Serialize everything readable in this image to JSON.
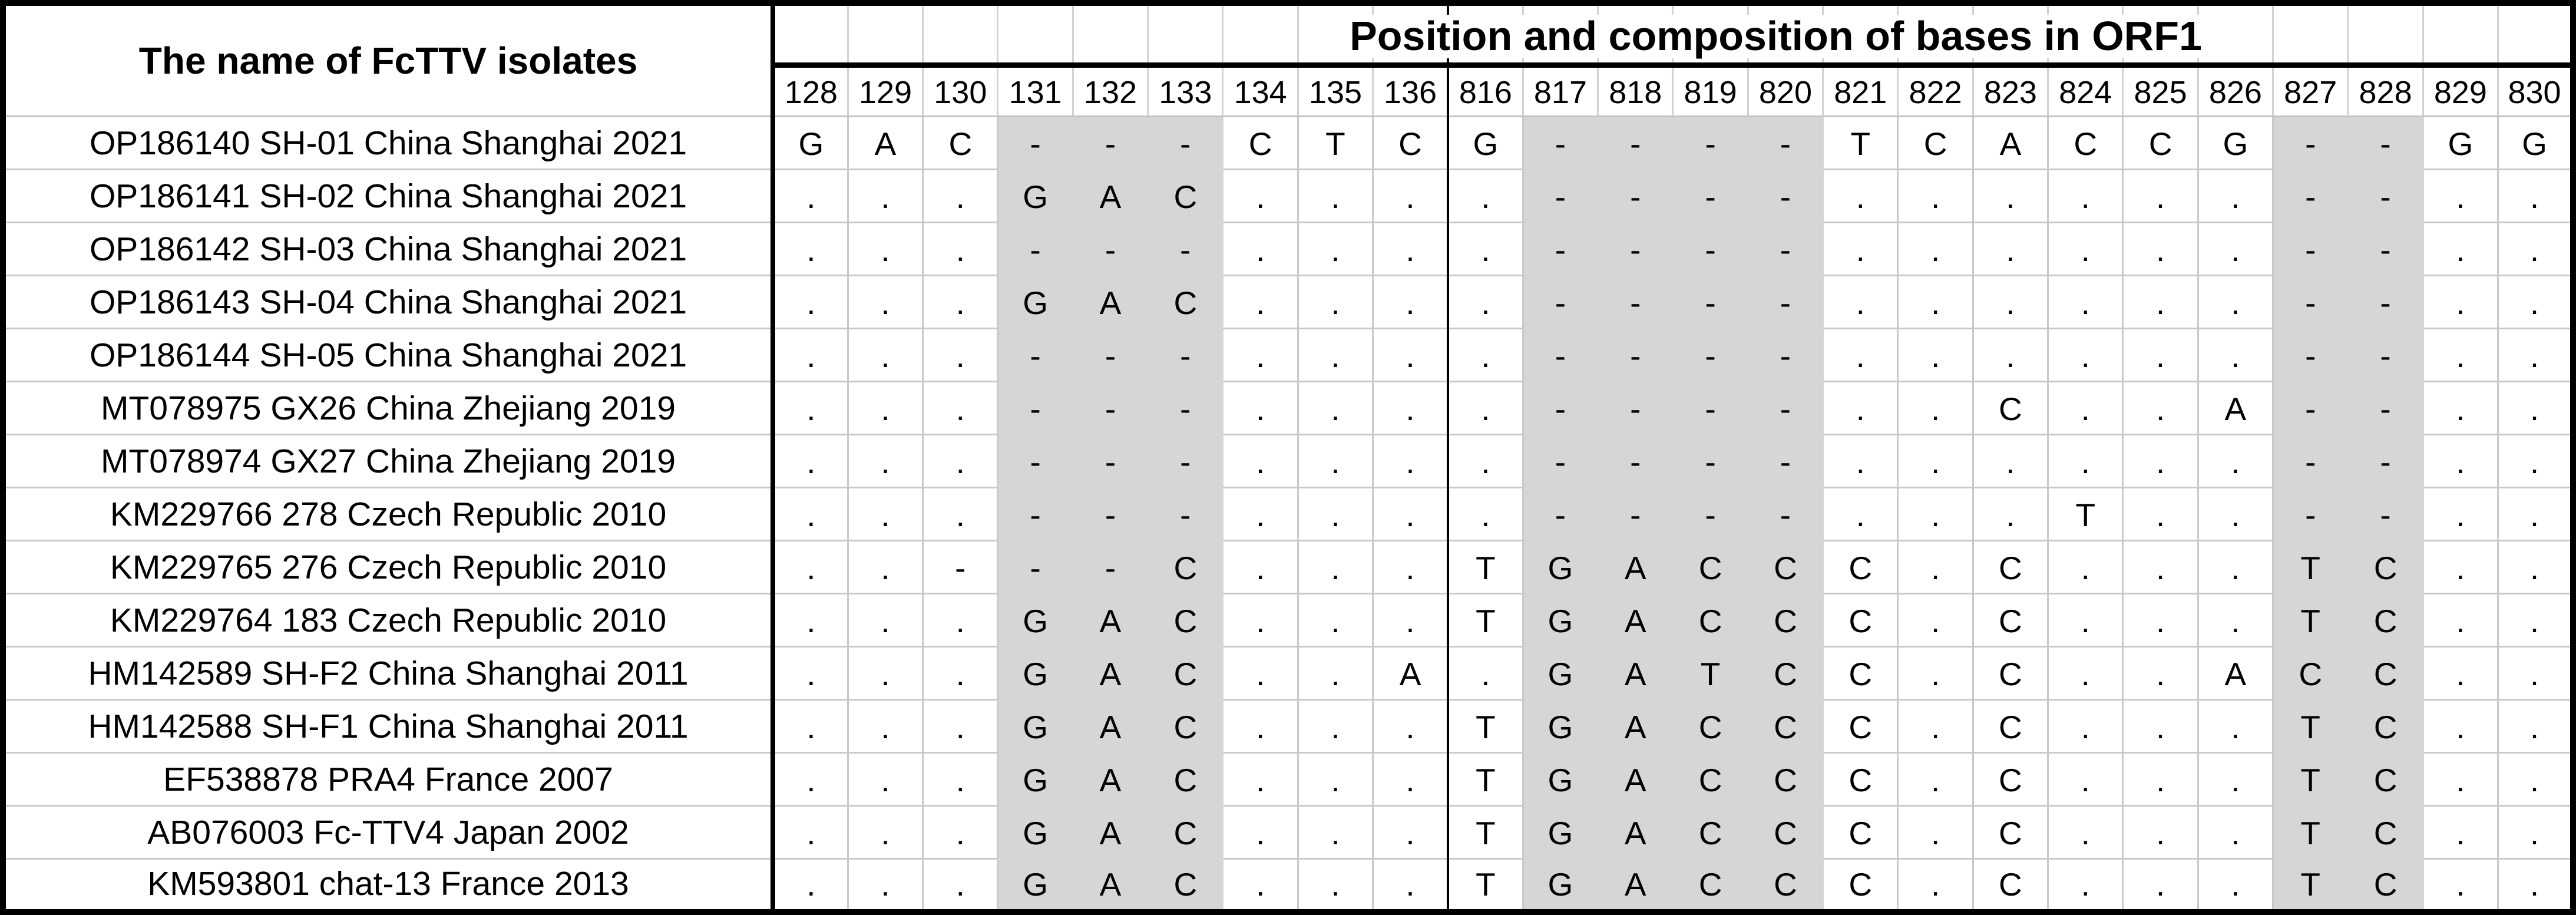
{
  "table": {
    "name_header": "The name of FcTTV isolates",
    "title": "Position and composition of bases in ORF1",
    "positions": [
      "128",
      "129",
      "130",
      "131",
      "132",
      "133",
      "134",
      "135",
      "136",
      "816",
      "817",
      "818",
      "819",
      "820",
      "821",
      "822",
      "823",
      "824",
      "825",
      "826",
      "827",
      "828",
      "829",
      "830"
    ],
    "shaded_positions": [
      "131",
      "132",
      "133",
      "817",
      "818",
      "819",
      "820",
      "827",
      "828"
    ],
    "rows": [
      {
        "name": "OP186140 SH-01 China Shanghai 2021",
        "bases": [
          "G",
          "A",
          "C",
          "-",
          "-",
          "-",
          "C",
          "T",
          "C",
          "G",
          "-",
          "-",
          "-",
          "-",
          "T",
          "C",
          "A",
          "C",
          "C",
          "G",
          "-",
          "-",
          "G",
          "G"
        ]
      },
      {
        "name": "OP186141 SH-02 China Shanghai 2021",
        "bases": [
          ".",
          ".",
          ".",
          "G",
          "A",
          "C",
          ".",
          ".",
          ".",
          ".",
          "-",
          "-",
          "-",
          "-",
          ".",
          ".",
          ".",
          ".",
          ".",
          ".",
          "-",
          "-",
          ".",
          "."
        ]
      },
      {
        "name": "OP186142 SH-03 China Shanghai 2021",
        "bases": [
          ".",
          ".",
          ".",
          "-",
          "-",
          "-",
          ".",
          ".",
          ".",
          ".",
          "-",
          "-",
          "-",
          "-",
          ".",
          ".",
          ".",
          ".",
          ".",
          ".",
          "-",
          "-",
          ".",
          "."
        ]
      },
      {
        "name": "OP186143 SH-04 China Shanghai 2021",
        "bases": [
          ".",
          ".",
          ".",
          "G",
          "A",
          "C",
          ".",
          ".",
          ".",
          ".",
          "-",
          "-",
          "-",
          "-",
          ".",
          ".",
          ".",
          ".",
          ".",
          ".",
          "-",
          "-",
          ".",
          "."
        ]
      },
      {
        "name": "OP186144 SH-05 China Shanghai 2021",
        "bases": [
          ".",
          ".",
          ".",
          "-",
          "-",
          "-",
          ".",
          ".",
          ".",
          ".",
          "-",
          "-",
          "-",
          "-",
          ".",
          ".",
          ".",
          ".",
          ".",
          ".",
          "-",
          "-",
          ".",
          "."
        ]
      },
      {
        "name": "MT078975 GX26 China Zhejiang 2019",
        "bases": [
          ".",
          ".",
          ".",
          "-",
          "-",
          "-",
          ".",
          ".",
          ".",
          ".",
          "-",
          "-",
          "-",
          "-",
          ".",
          ".",
          "C",
          ".",
          ".",
          "A",
          "-",
          "-",
          ".",
          "."
        ]
      },
      {
        "name": "MT078974 GX27 China Zhejiang 2019",
        "bases": [
          ".",
          ".",
          ".",
          "-",
          "-",
          "-",
          ".",
          ".",
          ".",
          ".",
          "-",
          "-",
          "-",
          "-",
          ".",
          ".",
          ".",
          ".",
          ".",
          ".",
          "-",
          "-",
          ".",
          "."
        ]
      },
      {
        "name": "KM229766 278 Czech Republic 2010",
        "bases": [
          ".",
          ".",
          ".",
          "-",
          "-",
          "-",
          ".",
          ".",
          ".",
          ".",
          "-",
          "-",
          "-",
          "-",
          ".",
          ".",
          ".",
          "T",
          ".",
          ".",
          "-",
          "-",
          ".",
          "."
        ]
      },
      {
        "name": "KM229765 276 Czech Republic 2010",
        "bases": [
          ".",
          ".",
          "-",
          "-",
          "-",
          "C",
          ".",
          ".",
          ".",
          "T",
          "G",
          "A",
          "C",
          "C",
          "C",
          ".",
          "C",
          ".",
          ".",
          ".",
          "T",
          "C",
          ".",
          "."
        ]
      },
      {
        "name": "KM229764 183 Czech Republic 2010",
        "bases": [
          ".",
          ".",
          ".",
          "G",
          "A",
          "C",
          ".",
          ".",
          ".",
          "T",
          "G",
          "A",
          "C",
          "C",
          "C",
          ".",
          "C",
          ".",
          ".",
          ".",
          "T",
          "C",
          ".",
          "."
        ]
      },
      {
        "name": "HM142589 SH-F2 China Shanghai 2011",
        "bases": [
          ".",
          ".",
          ".",
          "G",
          "A",
          "C",
          ".",
          ".",
          "A",
          ".",
          "G",
          "A",
          "T",
          "C",
          "C",
          ".",
          "C",
          ".",
          ".",
          "A",
          "C",
          "C",
          ".",
          "."
        ]
      },
      {
        "name": "HM142588 SH-F1 China Shanghai 2011",
        "bases": [
          ".",
          ".",
          ".",
          "G",
          "A",
          "C",
          ".",
          ".",
          ".",
          "T",
          "G",
          "A",
          "C",
          "C",
          "C",
          ".",
          "C",
          ".",
          ".",
          ".",
          "T",
          "C",
          ".",
          "."
        ]
      },
      {
        "name": "EF538878 PRA4 France 2007",
        "bases": [
          ".",
          ".",
          ".",
          "G",
          "A",
          "C",
          ".",
          ".",
          ".",
          "T",
          "G",
          "A",
          "C",
          "C",
          "C",
          ".",
          "C",
          ".",
          ".",
          ".",
          "T",
          "C",
          ".",
          "."
        ]
      },
      {
        "name": "AB076003 Fc-TTV4 Japan 2002",
        "bases": [
          ".",
          ".",
          ".",
          "G",
          "A",
          "C",
          ".",
          ".",
          ".",
          "T",
          "G",
          "A",
          "C",
          "C",
          "C",
          ".",
          "C",
          ".",
          ".",
          ".",
          "T",
          "C",
          ".",
          "."
        ]
      },
      {
        "name": "KM593801 chat-13 France 2013",
        "bases": [
          ".",
          ".",
          ".",
          "G",
          "A",
          "C",
          ".",
          ".",
          ".",
          "T",
          "G",
          "A",
          "C",
          "C",
          "C",
          ".",
          "C",
          ".",
          ".",
          ".",
          "T",
          "C",
          ".",
          "."
        ]
      }
    ]
  },
  "colors": {
    "shaded_column_fill": "#d6d6d6",
    "grid_line": "#c9c9c9",
    "heavy_border": "#000000",
    "background": "#ffffff",
    "text": "#000000"
  }
}
